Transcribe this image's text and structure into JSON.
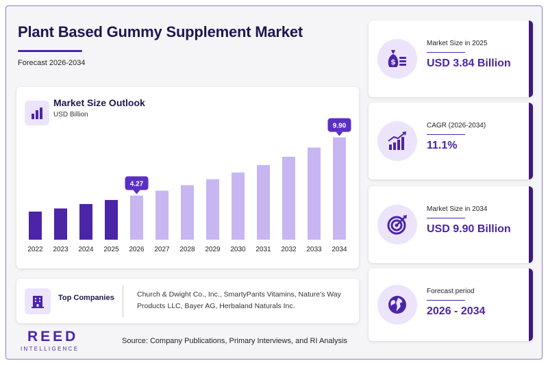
{
  "header": {
    "title": "Plant Based Gummy Supplement Market",
    "subtitle": "Forecast 2026-2034"
  },
  "chart": {
    "heading": "Market Size Outlook",
    "unit": "USD Billion",
    "icon": "bar-chart-icon"
  },
  "chart_data": {
    "type": "bar",
    "categories": [
      "2022",
      "2023",
      "2024",
      "2025",
      "2026",
      "2027",
      "2028",
      "2029",
      "2030",
      "2031",
      "2032",
      "2033",
      "2034"
    ],
    "values": [
      2.72,
      3.02,
      3.45,
      3.84,
      4.27,
      4.74,
      5.27,
      5.85,
      6.5,
      7.22,
      8.02,
      8.91,
      9.9
    ],
    "labeled_points": [
      {
        "category": "2026",
        "label": "4.27"
      },
      {
        "category": "2034",
        "label": "9.90"
      }
    ],
    "title": "Market Size Outlook",
    "ylabel": "USD Billion",
    "ylim": [
      0,
      10.8
    ],
    "grid": false,
    "colors": {
      "historical": "#4b24a8",
      "forecast": "#c7b6f2",
      "callout": "#5b2fc4"
    }
  },
  "companies": {
    "label": "Top Companies",
    "text": "Church & Dwight Co., Inc., SmartyPants Vitamins, Nature's Way Products LLC, Bayer AG, Herbaland Naturals Inc.",
    "icon": "building-icon"
  },
  "stats": [
    {
      "label": "Market Size in 2025",
      "value": "USD 3.84 Billion",
      "icon": "money-bag-icon"
    },
    {
      "label": "CAGR (2026-2034)",
      "value": "11.1%",
      "icon": "growth-chart-icon"
    },
    {
      "label": "Market Size in 2034",
      "value": "USD 9.90 Billion",
      "icon": "target-icon"
    },
    {
      "label": "Forecast period",
      "value": "2026 - 2034",
      "icon": "globe-icon"
    }
  ],
  "logo": {
    "main": "REED",
    "sub": "INTELLIGENCE"
  },
  "source": "Source: Company Publications, Primary Interviews, and RI Analysis",
  "colors": {
    "primary": "#4b24a8",
    "dark": "#1e1650",
    "light": "#ece4fb",
    "card_edge": "#3d1b7a"
  }
}
